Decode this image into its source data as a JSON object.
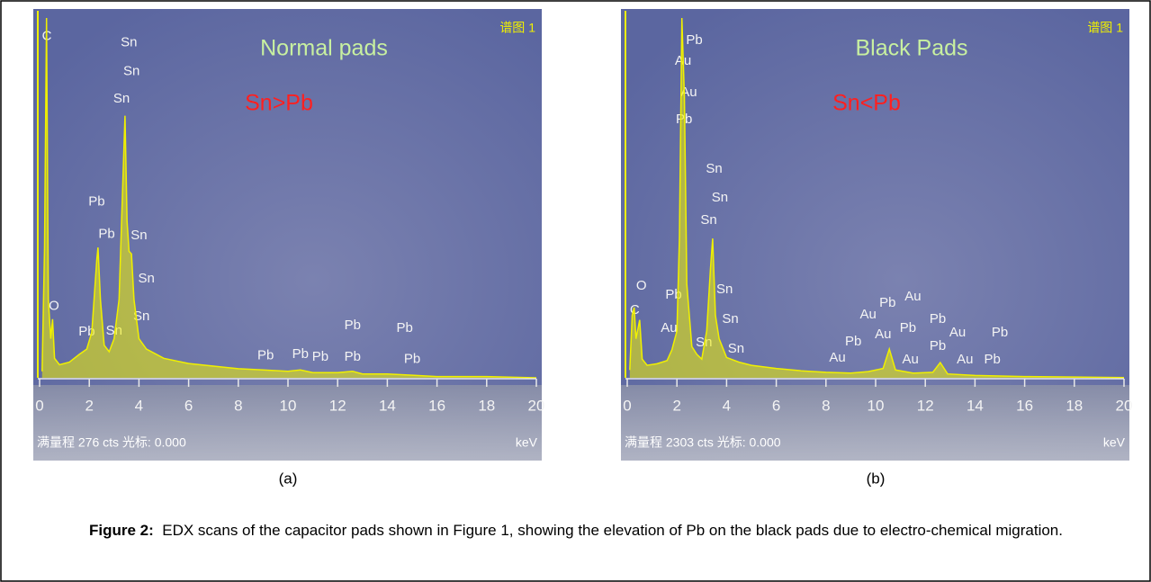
{
  "chart_data": [
    {
      "type": "line",
      "title": "Normal pads",
      "subtitle": "Sn>Pb",
      "corner_label": "谱图 1",
      "footer": "满量程 276 cts 光标: 0.000",
      "xlabel": "keV",
      "label": "(a)",
      "xlim": [
        0,
        20
      ],
      "xticks": [
        0,
        2,
        4,
        6,
        8,
        10,
        12,
        14,
        16,
        18,
        20
      ],
      "ylim": [
        0,
        276
      ],
      "series": [
        {
          "color": "#f0f000",
          "x": [
            0.1,
            0.2,
            0.28,
            0.35,
            0.45,
            0.52,
            0.6,
            0.8,
            1.2,
            1.6,
            1.9,
            2.1,
            2.3,
            2.35,
            2.45,
            2.6,
            2.8,
            3.0,
            3.2,
            3.35,
            3.44,
            3.52,
            3.6,
            3.7,
            3.8,
            4.0,
            4.3,
            5,
            6,
            7,
            8,
            9,
            10,
            10.5,
            11,
            12,
            12.6,
            13,
            14,
            15,
            16,
            18,
            20
          ],
          "values": [
            5,
            100,
            276,
            60,
            30,
            45,
            15,
            10,
            12,
            18,
            22,
            35,
            90,
            100,
            60,
            25,
            20,
            30,
            60,
            150,
            201,
            120,
            97,
            95,
            60,
            30,
            22,
            15,
            11,
            9,
            7,
            6,
            5,
            6,
            4,
            4,
            5,
            3,
            3,
            2,
            1,
            1,
            0
          ]
        }
      ],
      "annotations": [
        {
          "text": "C",
          "x": 0.29,
          "y": 262
        },
        {
          "text": "Sn",
          "x": 3.6,
          "y": 257
        },
        {
          "text": "Sn",
          "x": 3.7,
          "y": 235
        },
        {
          "text": "Sn",
          "x": 3.3,
          "y": 214
        },
        {
          "text": "Pb",
          "x": 2.3,
          "y": 135
        },
        {
          "text": "Pb",
          "x": 2.7,
          "y": 110
        },
        {
          "text": "Sn",
          "x": 4.0,
          "y": 109
        },
        {
          "text": "Sn",
          "x": 4.3,
          "y": 76
        },
        {
          "text": "Sn",
          "x": 4.1,
          "y": 47
        },
        {
          "text": "O",
          "x": 0.58,
          "y": 55
        },
        {
          "text": "Pb",
          "x": 1.9,
          "y": 35
        },
        {
          "text": "Sn",
          "x": 3.0,
          "y": 36
        },
        {
          "text": "Pb",
          "x": 9.1,
          "y": 17
        },
        {
          "text": "Pb",
          "x": 10.5,
          "y": 18
        },
        {
          "text": "Pb",
          "x": 11.3,
          "y": 16
        },
        {
          "text": "Pb",
          "x": 12.6,
          "y": 40
        },
        {
          "text": "Pb",
          "x": 12.6,
          "y": 16
        },
        {
          "text": "Pb",
          "x": 14.7,
          "y": 38
        },
        {
          "text": "Pb",
          "x": 15.0,
          "y": 14
        }
      ]
    },
    {
      "type": "line",
      "title": "Black Pads",
      "subtitle": "Sn<Pb",
      "corner_label": "谱图 1",
      "footer": "满量程 2303 cts 光标: 0.000",
      "xlabel": "keV",
      "label": "(b)",
      "xlim": [
        0,
        20
      ],
      "xticks": [
        0,
        2,
        4,
        6,
        8,
        10,
        12,
        14,
        16,
        18,
        20
      ],
      "ylim": [
        0,
        2303
      ],
      "series": [
        {
          "color": "#f0f000",
          "x": [
            0.1,
            0.2,
            0.28,
            0.35,
            0.5,
            0.6,
            0.8,
            1.2,
            1.6,
            1.8,
            2.0,
            2.1,
            2.2,
            2.3,
            2.4,
            2.6,
            2.8,
            3.0,
            3.2,
            3.35,
            3.44,
            3.55,
            3.7,
            4.0,
            4.5,
            5,
            6,
            7,
            8,
            9,
            9.7,
            10.3,
            10.55,
            10.8,
            11.5,
            12.3,
            12.6,
            12.9,
            14,
            16,
            18,
            20
          ],
          "values": [
            50,
            400,
            450,
            250,
            370,
            120,
            80,
            90,
            110,
            180,
            300,
            900,
            2303,
            1800,
            600,
            200,
            150,
            120,
            300,
            700,
            892,
            400,
            250,
            130,
            100,
            80,
            60,
            45,
            35,
            30,
            40,
            60,
            184,
            50,
            30,
            35,
            98,
            25,
            15,
            8,
            5,
            2
          ]
        }
      ],
      "annotations": [
        {
          "text": "Pb",
          "x": 2.7,
          "y": 2159
        },
        {
          "text": "Au",
          "x": 2.25,
          "y": 2027
        },
        {
          "text": "Au",
          "x": 2.48,
          "y": 1825
        },
        {
          "text": "Pb",
          "x": 2.29,
          "y": 1652
        },
        {
          "text": "Sn",
          "x": 3.5,
          "y": 1336
        },
        {
          "text": "Sn",
          "x": 3.73,
          "y": 1152
        },
        {
          "text": "Sn",
          "x": 3.28,
          "y": 1008
        },
        {
          "text": "O",
          "x": 0.57,
          "y": 587
        },
        {
          "text": "C",
          "x": 0.3,
          "y": 432
        },
        {
          "text": "Pb",
          "x": 1.87,
          "y": 530
        },
        {
          "text": "Au",
          "x": 1.68,
          "y": 317
        },
        {
          "text": "Sn",
          "x": 3.92,
          "y": 564
        },
        {
          "text": "Sn",
          "x": 4.15,
          "y": 374
        },
        {
          "text": "Sn",
          "x": 3.09,
          "y": 225
        },
        {
          "text": "Sn",
          "x": 4.38,
          "y": 184
        },
        {
          "text": "Au",
          "x": 9.7,
          "y": 403
        },
        {
          "text": "Pb",
          "x": 10.48,
          "y": 478
        },
        {
          "text": "Au",
          "x": 11.5,
          "y": 518
        },
        {
          "text": "Pb",
          "x": 9.1,
          "y": 230
        },
        {
          "text": "Au",
          "x": 10.3,
          "y": 276
        },
        {
          "text": "Pb",
          "x": 11.3,
          "y": 317
        },
        {
          "text": "Au",
          "x": 8.46,
          "y": 127
        },
        {
          "text": "Au",
          "x": 11.4,
          "y": 115
        },
        {
          "text": "Pb",
          "x": 12.5,
          "y": 374
        },
        {
          "text": "Pb",
          "x": 12.5,
          "y": 202
        },
        {
          "text": "Au",
          "x": 13.3,
          "y": 288
        },
        {
          "text": "Au",
          "x": 13.6,
          "y": 115
        },
        {
          "text": "Pb",
          "x": 15.0,
          "y": 288
        },
        {
          "text": "Pb",
          "x": 14.7,
          "y": 115
        }
      ]
    }
  ],
  "caption": {
    "label": "Figure 2:",
    "text": "EDX scans of the capacitor pads shown in Figure 1, showing the elevation of Pb on the black pads due to electro-chemical migration."
  }
}
